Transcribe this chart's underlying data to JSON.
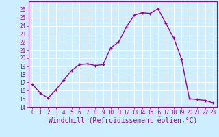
{
  "x": [
    0,
    1,
    2,
    3,
    4,
    5,
    6,
    7,
    8,
    9,
    10,
    11,
    12,
    13,
    14,
    15,
    16,
    17,
    18,
    19,
    20,
    21,
    22,
    23
  ],
  "y": [
    16.8,
    15.7,
    15.1,
    16.1,
    17.3,
    18.5,
    19.2,
    19.3,
    19.1,
    19.2,
    21.3,
    22.0,
    23.9,
    25.3,
    25.6,
    25.5,
    26.1,
    24.3,
    22.5,
    19.9,
    15.0,
    14.9,
    14.8,
    14.5
  ],
  "line_color": "#990099",
  "marker": "+",
  "marker_size": 3.5,
  "marker_lw": 1.0,
  "xlabel": "Windchill (Refroidissement éolien,°C)",
  "xlabel_fontsize": 7,
  "bg_color": "#cceeff",
  "grid_color": "#ffffff",
  "ylim": [
    14,
    27
  ],
  "xlim": [
    -0.5,
    23.5
  ],
  "yticks": [
    14,
    15,
    16,
    17,
    18,
    19,
    20,
    21,
    22,
    23,
    24,
    25,
    26
  ],
  "xticks": [
    0,
    1,
    2,
    3,
    4,
    5,
    6,
    7,
    8,
    9,
    10,
    11,
    12,
    13,
    14,
    15,
    16,
    17,
    18,
    19,
    20,
    21,
    22,
    23
  ],
  "tick_fontsize": 5.5,
  "tick_color": "#990099",
  "spine_color": "#990099",
  "line_width": 1.0
}
